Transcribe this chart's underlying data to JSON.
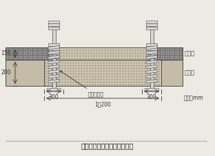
{
  "title": "図３走行路の断面形式模式図",
  "bg_color": "#edeae3",
  "label_耕土層": "耕土層",
  "label_心土層": "心土層",
  "label_地盤強化層": "地盤強化層",
  "dim_150": "150",
  "dim_200": "200",
  "dim_300_left": "300",
  "dim_300_right": "300",
  "dim_1200": "1，200",
  "dim_unit": "単位：mm",
  "col_dark": "#333333",
  "col_soil_top": "#787878",
  "col_soil_bot": "#c5bca8",
  "col_reinforce": "#cec6b0",
  "col_post_face": "#d8d8d8",
  "col_post_edge": "#444444",
  "col_flange": "#e0e0e0"
}
